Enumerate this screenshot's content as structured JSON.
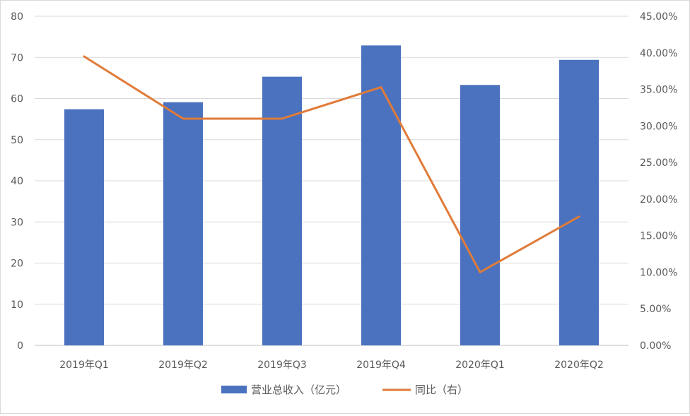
{
  "chart_data": {
    "type": "bar",
    "categories": [
      "2019年Q1",
      "2019年Q2",
      "2019年Q3",
      "2019年Q4",
      "2020年Q1",
      "2020年Q2"
    ],
    "series": [
      {
        "name": "营业总收入（亿元）",
        "type": "bar",
        "axis": "left",
        "color": "#4A72BF",
        "values": [
          57.4,
          59.1,
          65.3,
          72.9,
          63.3,
          69.4
        ]
      },
      {
        "name": "同比（右）",
        "type": "line",
        "axis": "right",
        "color": "#E07B39",
        "values": [
          0.395,
          0.31,
          0.31,
          0.353,
          0.1,
          0.176
        ]
      }
    ],
    "y_left": {
      "min": 0,
      "max": 80,
      "step": 10,
      "ticks": [
        "0",
        "10",
        "20",
        "30",
        "40",
        "50",
        "60",
        "70",
        "80"
      ]
    },
    "y_right": {
      "min": 0,
      "max": 0.45,
      "step": 0.05,
      "ticks": [
        "0.00%",
        "5.00%",
        "10.00%",
        "15.00%",
        "20.00%",
        "25.00%",
        "30.00%",
        "35.00%",
        "40.00%",
        "45.00%"
      ]
    },
    "grid": true,
    "legend_position": "bottom"
  }
}
